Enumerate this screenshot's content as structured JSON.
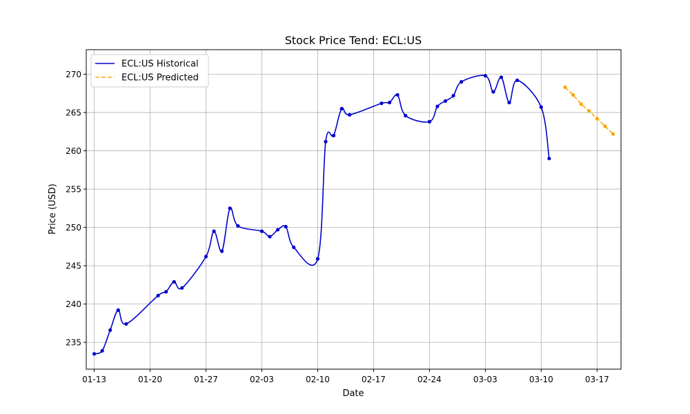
{
  "chart_data": {
    "type": "line",
    "title": "Stock Price Tend: ECL:US",
    "xlabel": "Date",
    "ylabel": "Price (USD)",
    "xlim": [
      "2025-01-12",
      "2025-03-20"
    ],
    "ylim": [
      231.5,
      273.2
    ],
    "x_ticks": [
      {
        "date": "2025-01-13",
        "label": "01-13"
      },
      {
        "date": "2025-01-20",
        "label": "01-20"
      },
      {
        "date": "2025-01-27",
        "label": "01-27"
      },
      {
        "date": "2025-02-03",
        "label": "02-03"
      },
      {
        "date": "2025-02-10",
        "label": "02-10"
      },
      {
        "date": "2025-02-17",
        "label": "02-17"
      },
      {
        "date": "2025-02-24",
        "label": "02-24"
      },
      {
        "date": "2025-03-03",
        "label": "03-03"
      },
      {
        "date": "2025-03-10",
        "label": "03-10"
      },
      {
        "date": "2025-03-17",
        "label": "03-17"
      }
    ],
    "y_ticks": [
      235,
      240,
      245,
      250,
      255,
      260,
      265,
      270
    ],
    "grid": true,
    "legend_position": "top-left",
    "series": [
      {
        "name": "ECL:US Historical",
        "color": "#0000cc",
        "style": "solid",
        "points": [
          {
            "x": "2025-01-13",
            "y": 233.5
          },
          {
            "x": "2025-01-14",
            "y": 233.9
          },
          {
            "x": "2025-01-15",
            "y": 236.6
          },
          {
            "x": "2025-01-16",
            "y": 239.2
          },
          {
            "x": "2025-01-17",
            "y": 237.4
          },
          {
            "x": "2025-01-21",
            "y": 241.1
          },
          {
            "x": "2025-01-22",
            "y": 241.6
          },
          {
            "x": "2025-01-23",
            "y": 242.9
          },
          {
            "x": "2025-01-24",
            "y": 242.1
          },
          {
            "x": "2025-01-27",
            "y": 246.2
          },
          {
            "x": "2025-01-28",
            "y": 249.5
          },
          {
            "x": "2025-01-29",
            "y": 246.9
          },
          {
            "x": "2025-01-30",
            "y": 252.5
          },
          {
            "x": "2025-01-31",
            "y": 250.2
          },
          {
            "x": "2025-02-03",
            "y": 249.5
          },
          {
            "x": "2025-02-04",
            "y": 248.8
          },
          {
            "x": "2025-02-05",
            "y": 249.7
          },
          {
            "x": "2025-02-06",
            "y": 250.1
          },
          {
            "x": "2025-02-07",
            "y": 247.4
          },
          {
            "x": "2025-02-10",
            "y": 245.9
          },
          {
            "x": "2025-02-11",
            "y": 261.2
          },
          {
            "x": "2025-02-12",
            "y": 262.0
          },
          {
            "x": "2025-02-13",
            "y": 265.5
          },
          {
            "x": "2025-02-14",
            "y": 264.7
          },
          {
            "x": "2025-02-18",
            "y": 266.2
          },
          {
            "x": "2025-02-19",
            "y": 266.3
          },
          {
            "x": "2025-02-20",
            "y": 267.3
          },
          {
            "x": "2025-02-21",
            "y": 264.6
          },
          {
            "x": "2025-02-24",
            "y": 263.8
          },
          {
            "x": "2025-02-25",
            "y": 265.8
          },
          {
            "x": "2025-02-26",
            "y": 266.5
          },
          {
            "x": "2025-02-27",
            "y": 267.2
          },
          {
            "x": "2025-02-28",
            "y": 269.0
          },
          {
            "x": "2025-03-03",
            "y": 269.8
          },
          {
            "x": "2025-03-04",
            "y": 267.7
          },
          {
            "x": "2025-03-05",
            "y": 269.6
          },
          {
            "x": "2025-03-06",
            "y": 266.3
          },
          {
            "x": "2025-03-07",
            "y": 269.2
          },
          {
            "x": "2025-03-10",
            "y": 265.7
          },
          {
            "x": "2025-03-11",
            "y": 259.0
          }
        ]
      },
      {
        "name": "ECL:US Predicted",
        "color": "#ffa500",
        "style": "dashed",
        "points": [
          {
            "x": "2025-03-13",
            "y": 268.3
          },
          {
            "x": "2025-03-14",
            "y": 267.3
          },
          {
            "x": "2025-03-15",
            "y": 266.1
          },
          {
            "x": "2025-03-16",
            "y": 265.2
          },
          {
            "x": "2025-03-17",
            "y": 264.2
          },
          {
            "x": "2025-03-18",
            "y": 263.2
          },
          {
            "x": "2025-03-19",
            "y": 262.2
          }
        ]
      }
    ]
  }
}
